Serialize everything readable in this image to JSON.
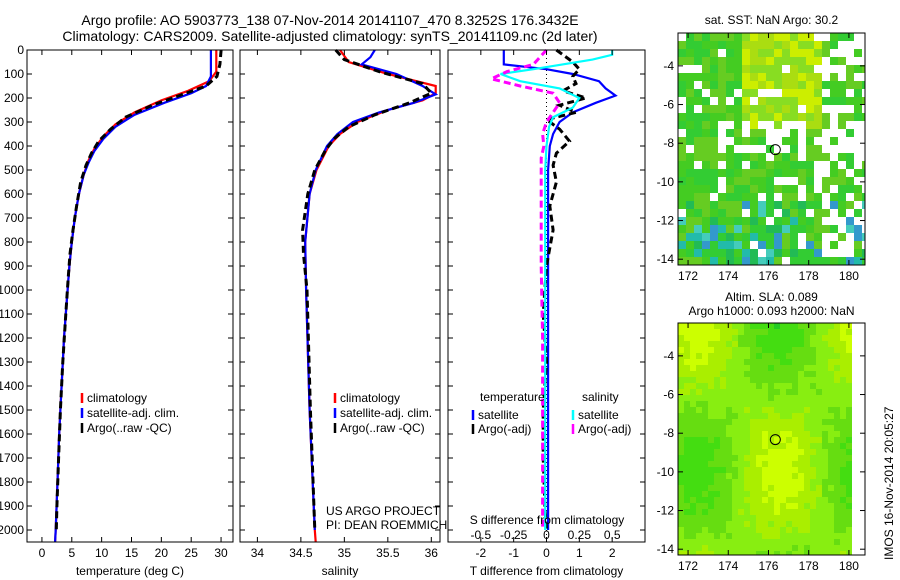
{
  "title_line1": "Argo profile: AO 5903773_138 07-Nov-2014 20141107_470 8.3252S 176.3432E",
  "title_line2": "Climatology: CARS2009. Satellite-adjusted climatology: synTS_20141109.nc (2d later)",
  "timestamp": "IMOS 16-Nov-2014 20:05:27",
  "depth_ticks": [
    0,
    100,
    200,
    300,
    400,
    500,
    600,
    700,
    800,
    900,
    1000,
    1100,
    1200,
    1300,
    1400,
    1500,
    1600,
    1700,
    1800,
    1900,
    2000
  ],
  "chart_data": [
    {
      "type": "line",
      "xlabel": "temperature (deg C)",
      "ylabel": "depth",
      "xlim": [
        -2.5,
        32
      ],
      "ylim": [
        2050,
        0
      ],
      "xticks": [
        0,
        5,
        10,
        15,
        20,
        25,
        30
      ],
      "legend": [
        "climatology",
        "satellite-adj. clim.",
        "Argo(..raw -QC)"
      ],
      "series": [
        {
          "name": "climatology",
          "color": "#ff0000",
          "dash": false,
          "depth": [
            0,
            90,
            130,
            170,
            210,
            260,
            310,
            360,
            410,
            460,
            520,
            600,
            700,
            800,
            900,
            1000,
            1200,
            1400,
            1600,
            1800,
            2000,
            2050
          ],
          "values": [
            29.2,
            29.2,
            28,
            24.5,
            20,
            15.5,
            12.3,
            10.3,
            8.8,
            7.8,
            7.0,
            6.2,
            5.5,
            5.0,
            4.6,
            4.3,
            3.7,
            3.3,
            2.9,
            2.6,
            2.3,
            2.2
          ]
        },
        {
          "name": "satellite-adj. clim.",
          "color": "#0000ff",
          "dash": false,
          "depth": [
            0,
            110,
            150,
            180,
            220,
            270,
            320,
            370,
            420,
            470,
            520,
            600,
            700,
            800,
            900,
            1000,
            1200,
            1400,
            1600,
            1800,
            2000,
            2050
          ],
          "values": [
            28.3,
            28.3,
            27.5,
            25,
            20.5,
            15.5,
            12.3,
            10.3,
            8.8,
            7.8,
            7.0,
            6.2,
            5.5,
            5.0,
            4.6,
            4.3,
            3.7,
            3.3,
            2.9,
            2.6,
            2.3,
            2.2
          ]
        },
        {
          "name": "Argo(..raw -QC)",
          "color": "#000000",
          "dash": true,
          "depth": [
            0,
            60,
            110,
            150,
            190,
            230,
            280,
            330,
            380,
            430,
            480,
            550,
            650,
            750,
            850,
            950,
            1100,
            1300,
            1500,
            1700,
            1900,
            2000
          ],
          "values": [
            30,
            29.8,
            29.3,
            27.5,
            23,
            18.5,
            14,
            11.5,
            9.5,
            8.3,
            7.4,
            6.5,
            5.8,
            5.2,
            4.7,
            4.4,
            4.0,
            3.5,
            3.1,
            2.8,
            2.5,
            2.4
          ]
        }
      ]
    },
    {
      "type": "line",
      "xlabel": "salinity",
      "ylabel": "depth",
      "xlim": [
        33.8,
        36.1
      ],
      "ylim": [
        2050,
        0
      ],
      "xticks": [
        34,
        34.5,
        35,
        35.5,
        36
      ],
      "legend": [
        "climatology",
        "satellite-adj. clim.",
        "Argo(..raw -QC)"
      ],
      "annotation": [
        "US ARGO PROJECT",
        "PI: DEAN ROEMMICH"
      ],
      "series": [
        {
          "name": "climatology",
          "color": "#ff0000",
          "dash": false,
          "depth": [
            0,
            50,
            100,
            150,
            180,
            210,
            250,
            300,
            350,
            400,
            500,
            600,
            800,
            1000,
            1500,
            2000,
            2050
          ],
          "values": [
            34.95,
            35.05,
            35.5,
            36.05,
            36.05,
            35.9,
            35.5,
            35.15,
            34.95,
            34.82,
            34.68,
            34.6,
            34.55,
            34.56,
            34.6,
            34.66,
            34.67
          ]
        },
        {
          "name": "satellite-adj. clim.",
          "color": "#0000ff",
          "dash": false,
          "depth": [
            0,
            30,
            60,
            100,
            150,
            185,
            220,
            260,
            300,
            350,
            400,
            500,
            600,
            800,
            1000,
            1500,
            2000
          ],
          "values": [
            35.35,
            35.3,
            35.2,
            35.6,
            35.9,
            36.05,
            35.8,
            35.4,
            35.1,
            34.92,
            34.8,
            34.67,
            34.6,
            34.55,
            34.56,
            34.6,
            34.66
          ]
        },
        {
          "name": "Argo(..raw -QC)",
          "color": "#000000",
          "dash": true,
          "depth": [
            0,
            40,
            90,
            140,
            180,
            220,
            270,
            320,
            370,
            420,
            500,
            600,
            750,
            850,
            1000,
            1500,
            2000
          ],
          "values": [
            34.9,
            35.0,
            35.4,
            35.9,
            36.0,
            35.75,
            35.35,
            35.05,
            34.88,
            34.78,
            34.66,
            34.58,
            34.52,
            34.53,
            34.57,
            34.61,
            34.66
          ]
        }
      ]
    },
    {
      "type": "line",
      "xlabel": "T difference from climatology",
      "x2label": "S difference from climatology",
      "ylabel": "depth",
      "xlim": [
        -3,
        3
      ],
      "x2lim": [
        -0.75,
        0.75
      ],
      "ylim": [
        2050,
        0
      ],
      "xticks": [
        -2,
        -1,
        0,
        1,
        2
      ],
      "x2ticks": [
        -0.5,
        -0.25,
        0,
        0.25,
        0.5
      ],
      "legend_titles": [
        "temperature",
        "salinity"
      ],
      "legend": [
        "satellite",
        "Argo(-adj)",
        "satellite",
        "Argo(-adj)"
      ],
      "series": [
        {
          "name": "temperature satellite",
          "axis": "T",
          "color": "#0000ff",
          "dash": false,
          "depth": [
            0,
            60,
            80,
            100,
            130,
            160,
            190,
            220,
            260,
            300,
            350,
            400,
            500,
            600,
            800,
            1000,
            1500,
            2000
          ],
          "values": [
            -1.3,
            -1.3,
            0,
            0.8,
            1.6,
            1.8,
            2.1,
            1.5,
            0.8,
            0.4,
            0.2,
            0.1,
            0.05,
            0.05,
            0.05,
            0.05,
            0.05,
            0.05
          ]
        },
        {
          "name": "temperature Argo(-adj)",
          "axis": "T",
          "color": "#000000",
          "dash": true,
          "depth": [
            0,
            50,
            80,
            110,
            140,
            170,
            200,
            230,
            260,
            290,
            330,
            380,
            430,
            480,
            550,
            650,
            750,
            900,
            1100,
            1300,
            1500,
            1700,
            1900,
            2000
          ],
          "values": [
            0.3,
            0.8,
            1.0,
            0.8,
            0.9,
            0.5,
            1.2,
            0.4,
            0.9,
            0,
            0.4,
            0.7,
            0.3,
            0.2,
            0.3,
            0.1,
            0.2,
            0,
            -0.1,
            0,
            -0.1,
            -0.1,
            -0.05,
            0
          ]
        },
        {
          "name": "salinity satellite",
          "axis": "S",
          "color": "#00ffff",
          "dash": false,
          "depth": [
            0,
            20,
            40,
            80,
            100,
            130,
            160,
            200,
            240,
            280,
            320,
            400,
            500,
            600,
            800,
            1000,
            1500,
            2000
          ],
          "values": [
            0.5,
            0.5,
            0.35,
            -0.1,
            -0.35,
            -0.2,
            0.1,
            0.25,
            0.2,
            0.05,
            0.02,
            0,
            -0.01,
            -0.01,
            -0.01,
            -0.01,
            -0.01,
            -0.01
          ]
        },
        {
          "name": "salinity Argo(-adj)",
          "axis": "S",
          "color": "#ff00ff",
          "dash": true,
          "depth": [
            0,
            30,
            60,
            90,
            120,
            150,
            180,
            220,
            260,
            300,
            350,
            400,
            450,
            550,
            700,
            900,
            1200,
            1500,
            1800,
            2000
          ],
          "values": [
            0,
            -0.05,
            -0.1,
            -0.3,
            -0.42,
            -0.2,
            0.05,
            0.1,
            0.05,
            0,
            -0.03,
            -0.02,
            -0.04,
            -0.04,
            -0.04,
            -0.04,
            -0.03,
            -0.03,
            -0.03,
            -0.03
          ]
        }
      ]
    },
    {
      "type": "heatmap",
      "title": "sat. SST: NaN Argo: 30.2",
      "xlim": [
        171.5,
        180.8
      ],
      "ylim": [
        -14.3,
        -2.3
      ],
      "xticks": [
        172,
        174,
        176,
        178,
        180
      ],
      "yticks": [
        -4,
        -6,
        -8,
        -10,
        -12,
        -14
      ],
      "marker": {
        "lon": 176.34,
        "lat": -8.33
      },
      "palette": [
        "#33cc33",
        "#44cc22",
        "#66cc22",
        "#88dd22",
        "#aadd11",
        "#ccee00",
        "#22bb55",
        "#22bbaa",
        "#44ccbb",
        "#3399cc"
      ]
    },
    {
      "type": "heatmap",
      "title": "Altim. SLA: 0.089",
      "subtitle": "Argo h1000: 0.093 h2000: NaN",
      "xlim": [
        171.5,
        180.8
      ],
      "ylim": [
        -14.3,
        -2.3
      ],
      "xticks": [
        172,
        174,
        176,
        178,
        180
      ],
      "yticks": [
        -4,
        -6,
        -8,
        -10,
        -12,
        -14
      ],
      "marker": {
        "lon": 176.34,
        "lat": -8.33
      },
      "palette": [
        "#22cc22",
        "#44dd11",
        "#66dd11",
        "#88ee11",
        "#aaee00",
        "#ccff00"
      ]
    }
  ]
}
